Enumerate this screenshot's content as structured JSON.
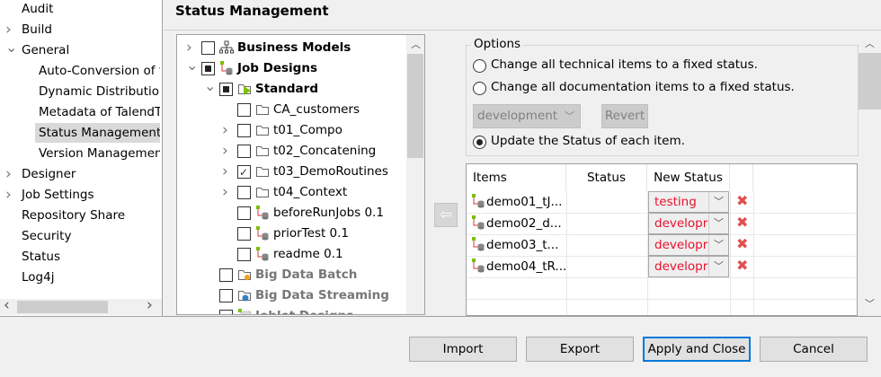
{
  "nav": {
    "items": [
      {
        "label": "Audit",
        "chevron": ""
      },
      {
        "label": "Build",
        "chevron": "right"
      },
      {
        "label": "General",
        "chevron": "down"
      },
      {
        "label": "Auto-Conversion of t",
        "chevron": "",
        "child": true
      },
      {
        "label": "Dynamic Distribution",
        "chevron": "",
        "child": true
      },
      {
        "label": "Metadata of TalendT",
        "chevron": "",
        "child": true
      },
      {
        "label": "Status Management",
        "chevron": "",
        "child": true,
        "selected": true
      },
      {
        "label": "Version Managemen",
        "chevron": "",
        "child": true
      },
      {
        "label": "Designer",
        "chevron": "right"
      },
      {
        "label": "Job Settings",
        "chevron": "right"
      },
      {
        "label": "Repository Share",
        "chevron": ""
      },
      {
        "label": "Security",
        "chevron": ""
      },
      {
        "label": "Status",
        "chevron": ""
      },
      {
        "label": "Log4j",
        "chevron": ""
      }
    ]
  },
  "page": {
    "title": "Status Management"
  },
  "tree": {
    "items": [
      {
        "label": "Business Models",
        "level": 0,
        "chevron": "right",
        "check": "none",
        "icon": "business-models-icon",
        "bold": true
      },
      {
        "label": "Job Designs",
        "level": 0,
        "chevron": "down",
        "check": "partial",
        "icon": "job-icon",
        "bold": true
      },
      {
        "label": "Standard",
        "level": 1,
        "chevron": "down",
        "check": "partial",
        "icon": "standard-folder-icon",
        "bold": true
      },
      {
        "label": "CA_customers",
        "level": 2,
        "chevron": "",
        "check": "none",
        "icon": "folder-icon"
      },
      {
        "label": "t01_Compo",
        "level": 2,
        "chevron": "right",
        "check": "none",
        "icon": "folder-icon"
      },
      {
        "label": "t02_Concatening",
        "level": 2,
        "chevron": "right",
        "check": "none",
        "icon": "folder-icon"
      },
      {
        "label": "t03_DemoRoutines",
        "level": 2,
        "chevron": "right",
        "check": "checked",
        "icon": "folder-icon"
      },
      {
        "label": "t04_Context",
        "level": 2,
        "chevron": "right",
        "check": "none",
        "icon": "folder-icon"
      },
      {
        "label": "beforeRunJobs 0.1",
        "level": 2,
        "chevron": "",
        "check": "none",
        "icon": "job-icon"
      },
      {
        "label": "priorTest 0.1",
        "level": 2,
        "chevron": "",
        "check": "none",
        "icon": "job-icon"
      },
      {
        "label": "readme 0.1",
        "level": 2,
        "chevron": "",
        "check": "none",
        "icon": "job-icon"
      },
      {
        "label": "Big Data Batch",
        "level": 1,
        "chevron": "",
        "check": "none",
        "icon": "big-data-batch-icon",
        "bold": true,
        "grey": true
      },
      {
        "label": "Big Data Streaming",
        "level": 1,
        "chevron": "",
        "check": "none",
        "icon": "big-data-streaming-icon",
        "bold": true,
        "grey": true
      },
      {
        "label": "Joblet Designs",
        "level": 1,
        "chevron": "",
        "check": "none",
        "icon": "joblet-icon",
        "bold": true,
        "grey": true
      }
    ]
  },
  "options": {
    "legend": "Options",
    "radio_technical": "Change all technical items to a fixed status.",
    "radio_documentation": "Change all documentation items to a fixed status.",
    "fixed_status_value": "development",
    "revert_label": "Revert",
    "radio_update": "Update the Status of each item.",
    "selected": "update"
  },
  "table": {
    "columns": [
      "Items",
      "Status",
      "New Status"
    ],
    "rows": [
      {
        "item": "demo01_tJ...",
        "status": "",
        "new_status": "testing"
      },
      {
        "item": "demo02_d...",
        "status": "",
        "new_status": "developr"
      },
      {
        "item": "demo03_t...",
        "status": "",
        "new_status": "developr"
      },
      {
        "item": "demo04_tR...",
        "status": "",
        "new_status": "developr"
      }
    ]
  },
  "buttons": {
    "import": "Import",
    "export": "Export",
    "apply_close": "Apply and Close",
    "cancel": "Cancel"
  },
  "colors": {
    "new_status_text": "#e8112d",
    "delete_icon": "#e05050",
    "default_button_border": "#0078d7",
    "job_icon_green": "#7cc000"
  }
}
